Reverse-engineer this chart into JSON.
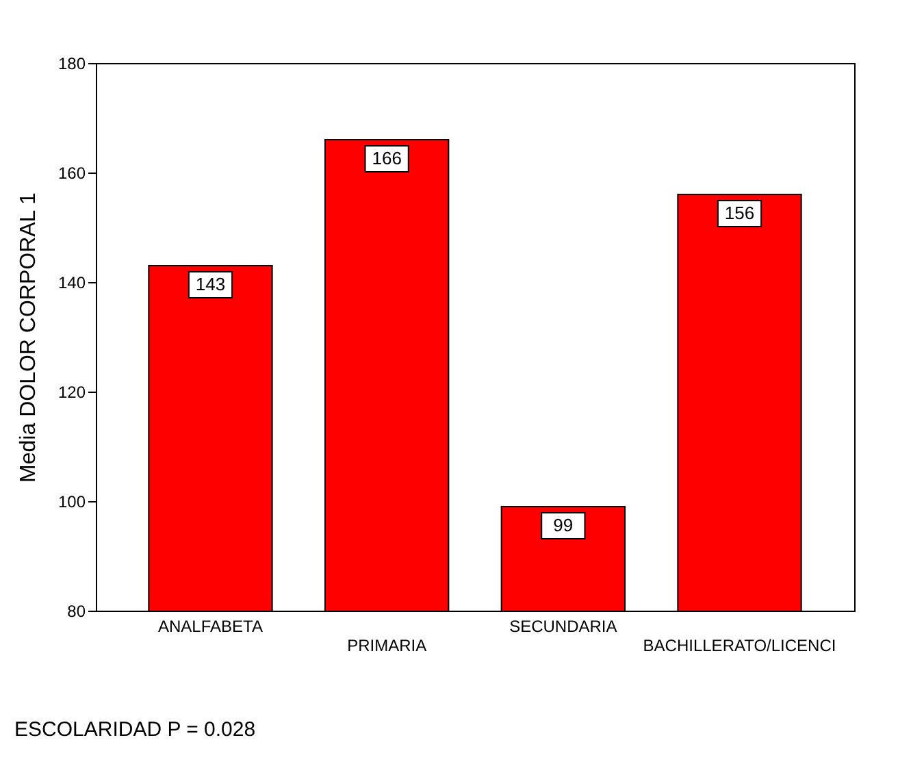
{
  "chart_data": {
    "type": "bar",
    "categories": [
      "ANALFABETA",
      "PRIMARIA",
      "SECUNDARIA",
      "BACHILLERATO/LICENCI"
    ],
    "values": [
      143,
      166,
      99,
      156
    ],
    "color": "#ff0000",
    "ylim": [
      80,
      180
    ],
    "yticks": [
      80,
      100,
      120,
      140,
      160,
      180
    ],
    "ylabel": "Media DOLOR CORPORAL 1",
    "xlabel": "ESCOLARIDAD P = 0.028",
    "data_labels": true,
    "grid": false
  }
}
